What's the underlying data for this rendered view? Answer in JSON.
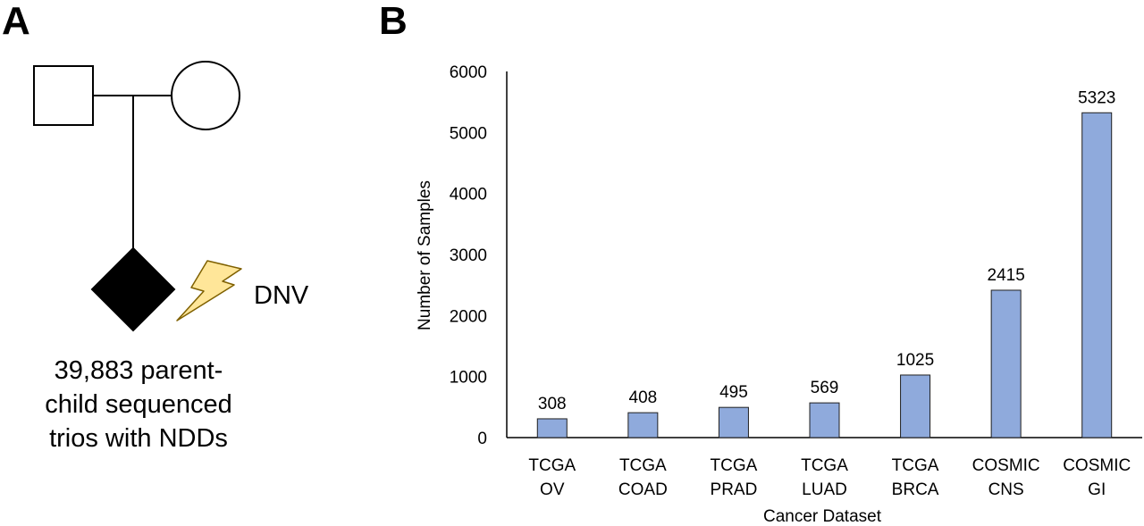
{
  "panel_a": {
    "label": "A",
    "lightning_label": "DNV",
    "caption_lines": [
      "39,883 parent-",
      "child sequenced",
      "trios with NDDs"
    ]
  },
  "panel_b": {
    "label": "B"
  },
  "colors": {
    "bar_fill": "#8faadc",
    "bar_stroke": "#1f1f1f",
    "lightning_fill": "#ffe699",
    "lightning_stroke": "#7f6000",
    "axis": "#000000"
  },
  "icons": [
    "father-square-icon",
    "mother-circle-icon",
    "affected-child-diamond-icon",
    "lightning-bolt-icon"
  ],
  "chart_data": {
    "type": "bar",
    "categories": [
      [
        "TCGA",
        "OV"
      ],
      [
        "TCGA",
        "COAD"
      ],
      [
        "TCGA",
        "PRAD"
      ],
      [
        "TCGA",
        "LUAD"
      ],
      [
        "TCGA",
        "BRCA"
      ],
      [
        "COSMIC",
        "CNS"
      ],
      [
        "COSMIC",
        "GI"
      ]
    ],
    "values": [
      308,
      408,
      495,
      569,
      1025,
      2415,
      5323
    ],
    "data_labels": [
      "308",
      "408",
      "495",
      "569",
      "1025",
      "2415",
      "5323"
    ],
    "title": "",
    "xlabel": "Cancer Dataset",
    "ylabel": "Number of Samples",
    "ylim": [
      0,
      6000
    ],
    "yticks": [
      0,
      1000,
      2000,
      3000,
      4000,
      5000,
      6000
    ],
    "grid": false,
    "legend": "none"
  }
}
